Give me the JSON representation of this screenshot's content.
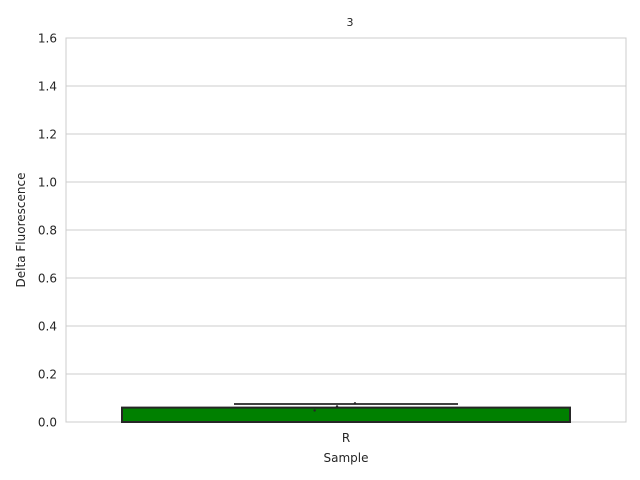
{
  "chart_data": {
    "type": "bar",
    "title": "3",
    "xlabel": "Sample",
    "ylabel": "Delta Fluorescence",
    "categories": [
      "R"
    ],
    "values": [
      0.06
    ],
    "error_bar": {
      "low": 0.075,
      "high": 0.075
    },
    "points": [
      0.048,
      0.065,
      0.078
    ],
    "ylim": [
      0,
      1.6
    ],
    "yticks": [
      "0.0",
      "0.2",
      "0.4",
      "0.6",
      "0.8",
      "1.0",
      "1.2",
      "1.4",
      "1.6"
    ],
    "grid": true,
    "colors": {
      "bar": "#008000",
      "edge": "#262626",
      "grid": "#cccccc",
      "errorbar": "#262626"
    }
  }
}
